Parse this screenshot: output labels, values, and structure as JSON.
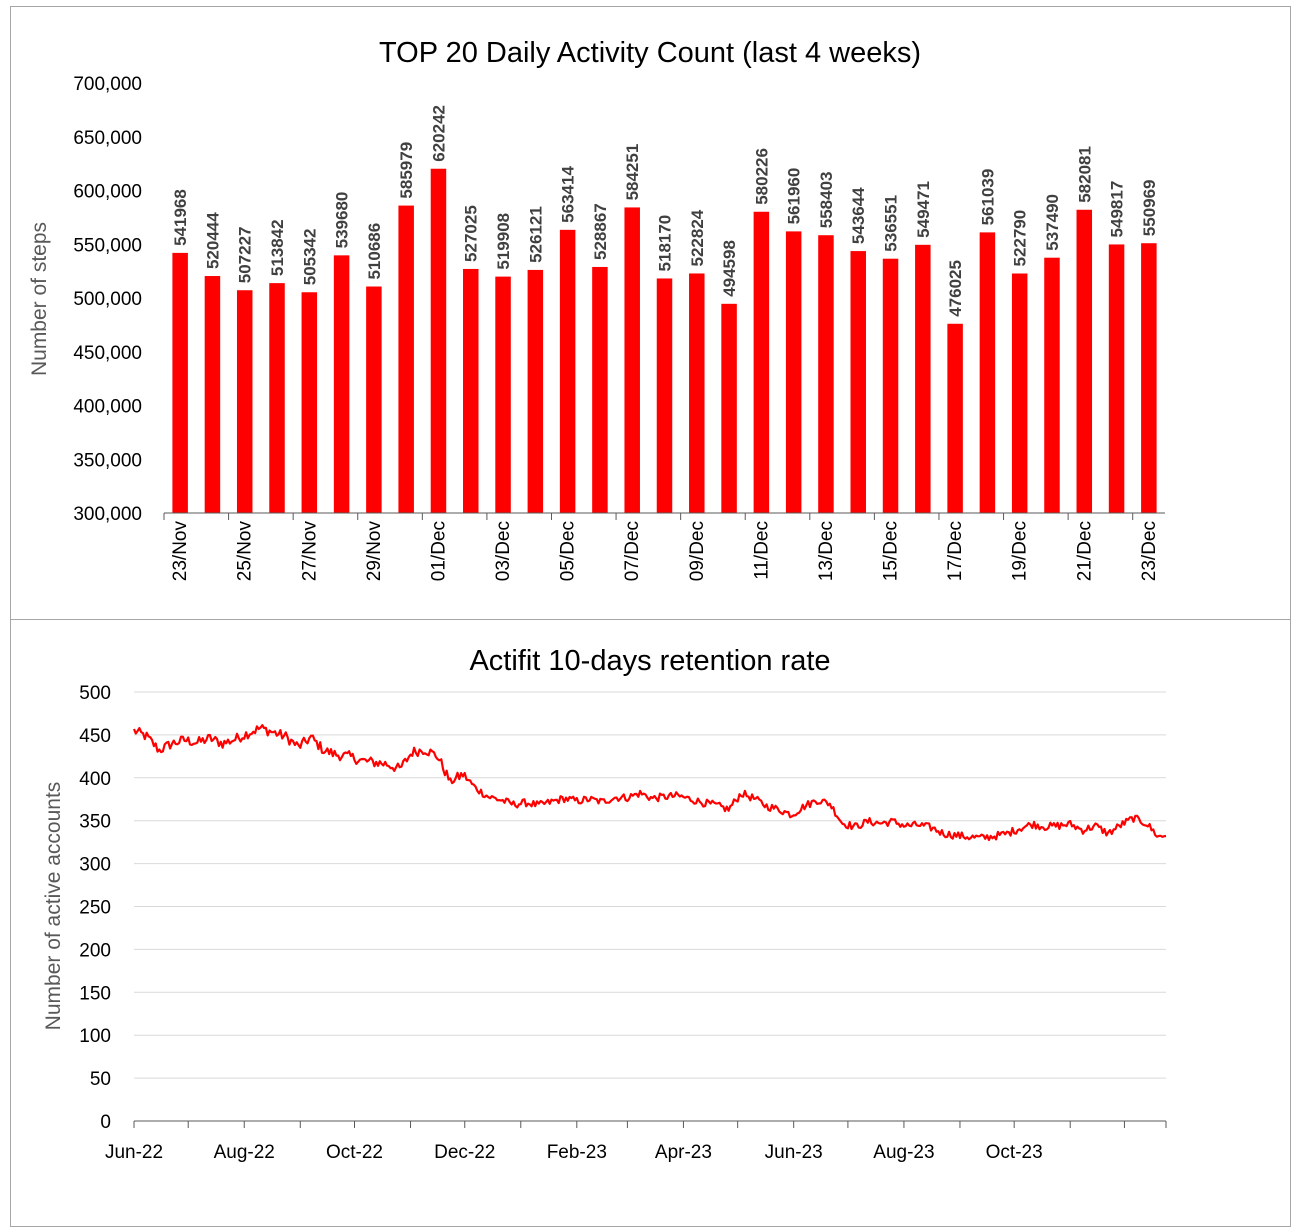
{
  "chart_data": [
    {
      "type": "bar",
      "title": "TOP 20 Daily Activity Count (last 4 weeks)",
      "xlabel": "",
      "ylabel": "Number of steps",
      "ylim": [
        300000,
        700000
      ],
      "ytick_step": 50000,
      "ytick_labels": [
        "300,000",
        "350,000",
        "400,000",
        "450,000",
        "500,000",
        "550,000",
        "600,000",
        "650,000",
        "700,000"
      ],
      "bar_color": "#ff0000",
      "grid": false,
      "categories": [
        "23/Nov",
        "24/Nov",
        "25/Nov",
        "26/Nov",
        "27/Nov",
        "28/Nov",
        "29/Nov",
        "30/Nov",
        "01/Dec",
        "02/Dec",
        "03/Dec",
        "04/Dec",
        "05/Dec",
        "06/Dec",
        "07/Dec",
        "08/Dec",
        "09/Dec",
        "10/Dec",
        "11/Dec",
        "12/Dec",
        "13/Dec",
        "14/Dec",
        "15/Dec",
        "16/Dec",
        "17/Dec",
        "18/Dec",
        "19/Dec",
        "20/Dec",
        "21/Dec",
        "22/Dec",
        "23/Dec"
      ],
      "tick_labels": [
        "23/Nov",
        "25/Nov",
        "27/Nov",
        "29/Nov",
        "01/Dec",
        "03/Dec",
        "05/Dec",
        "07/Dec",
        "09/Dec",
        "11/Dec",
        "13/Dec",
        "15/Dec",
        "17/Dec",
        "19/Dec",
        "21/Dec",
        "23/Dec"
      ],
      "values": [
        541968,
        520444,
        507227,
        513842,
        505342,
        539680,
        510686,
        585979,
        620242,
        527025,
        519908,
        526121,
        563414,
        528867,
        584251,
        518170,
        522824,
        494598,
        580226,
        561960,
        558403,
        543644,
        536551,
        549471,
        476025,
        561039,
        522790,
        537490,
        582081,
        549817,
        550969
      ]
    },
    {
      "type": "line",
      "title": "Actifit 10-days retention rate",
      "xlabel": "",
      "ylabel": "Number of active accounts",
      "ylim": [
        0,
        500
      ],
      "ytick_step": 50,
      "ytick_labels": [
        "0",
        "50",
        "100",
        "150",
        "200",
        "250",
        "300",
        "350",
        "400",
        "450",
        "500"
      ],
      "line_color": "#ff0000",
      "grid": true,
      "xtick_labels": [
        "Jun-22",
        "Aug-22",
        "Oct-22",
        "Dec-22",
        "Feb-23",
        "Apr-23",
        "Jun-23",
        "Aug-23",
        "Oct-23"
      ],
      "x_start": "2022-06-01",
      "x_end": "2023-12-24",
      "series": [
        {
          "name": "Active accounts",
          "dates": [
            "2022-06-01",
            "2022-06-08",
            "2022-06-15",
            "2022-06-22",
            "2022-06-29",
            "2022-07-06",
            "2022-07-13",
            "2022-07-20",
            "2022-07-27",
            "2022-08-03",
            "2022-08-10",
            "2022-08-17",
            "2022-08-24",
            "2022-08-31",
            "2022-09-07",
            "2022-09-14",
            "2022-09-21",
            "2022-09-28",
            "2022-10-05",
            "2022-10-12",
            "2022-10-19",
            "2022-10-26",
            "2022-11-02",
            "2022-11-09",
            "2022-11-16",
            "2022-11-23",
            "2022-11-30",
            "2022-12-07",
            "2022-12-14",
            "2022-12-21",
            "2022-12-28",
            "2023-01-04",
            "2023-01-11",
            "2023-01-18",
            "2023-01-25",
            "2023-02-01",
            "2023-02-08",
            "2023-02-15",
            "2023-02-22",
            "2023-03-01",
            "2023-03-08",
            "2023-03-15",
            "2023-03-22",
            "2023-03-29",
            "2023-04-05",
            "2023-04-12",
            "2023-04-19",
            "2023-04-26",
            "2023-05-03",
            "2023-05-10",
            "2023-05-17",
            "2023-05-24",
            "2023-05-31",
            "2023-06-07",
            "2023-06-14",
            "2023-06-21",
            "2023-06-28",
            "2023-07-05",
            "2023-07-12",
            "2023-07-19",
            "2023-07-26",
            "2023-08-02",
            "2023-08-09",
            "2023-08-16",
            "2023-08-23",
            "2023-08-30",
            "2023-09-06",
            "2023-09-13",
            "2023-09-20",
            "2023-09-27",
            "2023-10-04",
            "2023-10-11",
            "2023-10-18",
            "2023-10-25",
            "2023-11-01",
            "2023-11-08",
            "2023-11-15",
            "2023-11-22",
            "2023-11-29",
            "2023-12-06",
            "2023-12-13",
            "2023-12-20",
            "2023-12-24"
          ],
          "values": [
            455,
            448,
            432,
            440,
            444,
            441,
            446,
            440,
            445,
            452,
            458,
            453,
            448,
            436,
            447,
            432,
            427,
            425,
            420,
            418,
            416,
            410,
            430,
            433,
            425,
            395,
            404,
            388,
            378,
            374,
            369,
            371,
            368,
            372,
            376,
            373,
            375,
            372,
            377,
            377,
            382,
            376,
            378,
            379,
            375,
            371,
            368,
            363,
            382,
            376,
            367,
            363,
            357,
            367,
            374,
            370,
            347,
            343,
            349,
            347,
            349,
            344,
            345,
            342,
            335,
            333,
            331,
            330,
            332,
            335,
            341,
            346,
            343,
            344,
            346,
            339,
            344,
            335,
            345,
            353,
            347,
            331,
            333
          ]
        }
      ]
    }
  ]
}
